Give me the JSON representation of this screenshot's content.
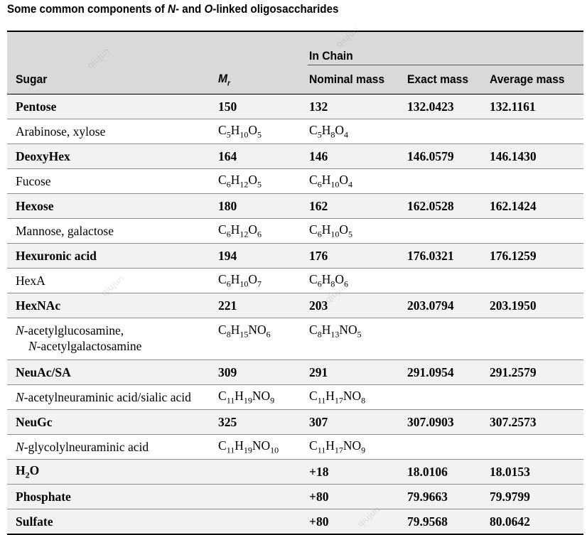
{
  "title": {
    "prefix": "Some common components of ",
    "n_letter": "N",
    "middle": "- and ",
    "o_letter": "O",
    "suffix": "-linked oligosaccharides"
  },
  "header": {
    "group_label": "In Chain",
    "sugar": "Sugar",
    "mr_symbol": "M",
    "mr_sub": "r",
    "nominal": "Nominal mass",
    "exact": "Exact mass",
    "average": "Average mass"
  },
  "rows": [
    {
      "kind": "main",
      "sugar": "Pentose",
      "mr": "150",
      "nominal": "132",
      "exact": "132.0423",
      "average": "132.1161"
    },
    {
      "kind": "sub",
      "sugar": "Arabinose, xylose",
      "mr_formula": [
        [
          "C",
          "5"
        ],
        [
          "H",
          "10"
        ],
        [
          "O",
          "5"
        ]
      ],
      "nominal_formula": [
        [
          "C",
          "5"
        ],
        [
          "H",
          "8"
        ],
        [
          "O",
          "4"
        ]
      ]
    },
    {
      "kind": "main",
      "sugar": "DeoxyHex",
      "mr": "164",
      "nominal": "146",
      "exact": "146.0579",
      "average": "146.1430"
    },
    {
      "kind": "sub",
      "sugar": "Fucose",
      "mr_formula": [
        [
          "C",
          "6"
        ],
        [
          "H",
          "12"
        ],
        [
          "O",
          "5"
        ]
      ],
      "nominal_formula": [
        [
          "C",
          "6"
        ],
        [
          "H",
          "10"
        ],
        [
          "O",
          "4"
        ]
      ]
    },
    {
      "kind": "main",
      "sugar": "Hexose",
      "mr": "180",
      "nominal": "162",
      "exact": "162.0528",
      "average": "162.1424"
    },
    {
      "kind": "sub",
      "sugar": "Mannose, galactose",
      "mr_formula": [
        [
          "C",
          "6"
        ],
        [
          "H",
          "12"
        ],
        [
          "O",
          "6"
        ]
      ],
      "nominal_formula": [
        [
          "C",
          "6"
        ],
        [
          "H",
          "10"
        ],
        [
          "O",
          "5"
        ]
      ]
    },
    {
      "kind": "main",
      "sugar": "Hexuronic acid",
      "mr": "194",
      "nominal": "176",
      "exact": "176.0321",
      "average": "176.1259"
    },
    {
      "kind": "sub",
      "sugar": "HexA",
      "mr_formula": [
        [
          "C",
          "6"
        ],
        [
          "H",
          "10"
        ],
        [
          "O",
          "7"
        ]
      ],
      "nominal_formula": [
        [
          "C",
          "6"
        ],
        [
          "H",
          "8"
        ],
        [
          "O",
          "6"
        ]
      ]
    },
    {
      "kind": "main",
      "sugar": "HexNAc",
      "mr": "221",
      "nominal": "203",
      "exact": "203.0794",
      "average": "203.1950"
    },
    {
      "kind": "sub",
      "tall": true,
      "sugar_lines": [
        [
          "N",
          "-acetylglucosamine,"
        ],
        [
          "N",
          "-acetylgalactosamine"
        ]
      ],
      "mr_formula": [
        [
          "C",
          "8"
        ],
        [
          "H",
          "15"
        ],
        [
          "NO",
          "6"
        ]
      ],
      "nominal_formula": [
        [
          "C",
          "8"
        ],
        [
          "H",
          "13"
        ],
        [
          "NO",
          "5"
        ]
      ]
    },
    {
      "kind": "main",
      "sugar": "NeuAc/SA",
      "mr": "309",
      "nominal": "291",
      "exact": "291.0954",
      "average": "291.2579"
    },
    {
      "kind": "sub",
      "sugar_lines": [
        [
          "N",
          "-acetylneuraminic acid/sialic acid"
        ]
      ],
      "mr_formula": [
        [
          "C",
          "11"
        ],
        [
          "H",
          "19"
        ],
        [
          "NO",
          "9"
        ]
      ],
      "nominal_formula": [
        [
          "C",
          "11"
        ],
        [
          "H",
          "17"
        ],
        [
          "NO",
          "8"
        ]
      ]
    },
    {
      "kind": "main",
      "sugar": "NeuGc",
      "mr": "325",
      "nominal": "307",
      "exact": "307.0903",
      "average": "307.2573"
    },
    {
      "kind": "sub",
      "sugar_lines": [
        [
          "N",
          "-glycolylneuraminic acid"
        ]
      ],
      "mr_formula": [
        [
          "C",
          "11"
        ],
        [
          "H",
          "19"
        ],
        [
          "NO",
          "10"
        ]
      ],
      "nominal_formula": [
        [
          "C",
          "11"
        ],
        [
          "H",
          "17"
        ],
        [
          "NO",
          "9"
        ]
      ]
    },
    {
      "kind": "main",
      "sugar_formula": [
        [
          "H",
          "2"
        ],
        [
          "O",
          ""
        ]
      ],
      "mr": "",
      "nominal": "+18",
      "exact": "18.0106",
      "average": "18.0153"
    },
    {
      "kind": "main",
      "sugar": "Phosphate",
      "mr": "",
      "nominal": "+80",
      "exact": "79.9663",
      "average": "79.9799"
    },
    {
      "kind": "main",
      "sugar": "Sulfate",
      "mr": "",
      "nominal": "+80",
      "exact": "79.9568",
      "average": "80.0642"
    }
  ],
  "watermark_text": "qiujun"
}
